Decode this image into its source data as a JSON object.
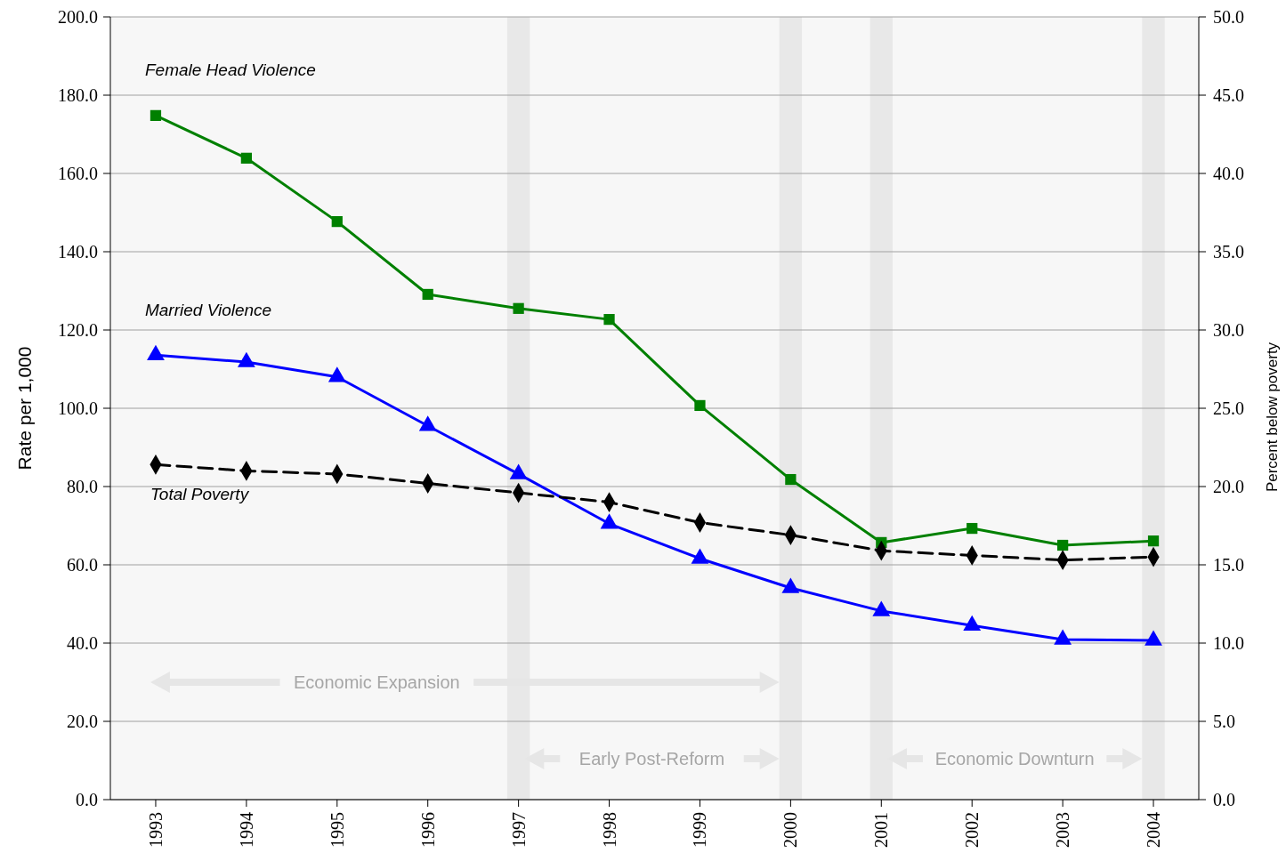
{
  "chart_data": {
    "type": "line",
    "ylabel": "Rate per 1,000",
    "y2label": "Percent below poverty",
    "x": [
      1993,
      1994,
      1995,
      1996,
      1997,
      1998,
      1999,
      2000,
      2001,
      2002,
      2003,
      2004
    ],
    "xlim": [
      1992.5,
      2004.5
    ],
    "xticks": [
      1993,
      1994,
      1995,
      1996,
      1997,
      1998,
      1999,
      2000,
      2001,
      2002,
      2003,
      2004
    ],
    "ylim": [
      0,
      200
    ],
    "yticks": [
      {
        "value": 0,
        "label": "0.0"
      },
      {
        "value": 20,
        "label": "20.0"
      },
      {
        "value": 40,
        "label": "40.0"
      },
      {
        "value": 60,
        "label": "60.0"
      },
      {
        "value": 80,
        "label": "80.0"
      },
      {
        "value": 100,
        "label": "100.0"
      },
      {
        "value": 120,
        "label": "120.0"
      },
      {
        "value": 140,
        "label": "140.0"
      },
      {
        "value": 160,
        "label": "160.0"
      },
      {
        "value": 180,
        "label": "180.0"
      },
      {
        "value": 200,
        "label": "200.0"
      }
    ],
    "y2lim": [
      0,
      50
    ],
    "y2ticks": [
      {
        "value": 0,
        "label": "0.0"
      },
      {
        "value": 5,
        "label": "5.0"
      },
      {
        "value": 10,
        "label": "10.0"
      },
      {
        "value": 15,
        "label": "15.0"
      },
      {
        "value": 20,
        "label": "20.0"
      },
      {
        "value": 25,
        "label": "25.0"
      },
      {
        "value": 30,
        "label": "30.0"
      },
      {
        "value": 35,
        "label": "35.0"
      },
      {
        "value": 40,
        "label": "40.0"
      },
      {
        "value": 45,
        "label": "45.0"
      },
      {
        "value": 50,
        "label": "50.0"
      }
    ],
    "grid": "y",
    "series": [
      {
        "name": "Female Head Violence",
        "color": "#008000",
        "marker": "square",
        "line_style": "solid",
        "values": [
          174.8,
          163.9,
          147.7,
          129.1,
          125.5,
          122.7,
          100.7,
          81.8,
          65.7,
          69.3,
          65.0,
          66.1
        ]
      },
      {
        "name": "Married Violence",
        "color": "#0000ff",
        "marker": "triangle",
        "line_style": "solid",
        "values": [
          113.6,
          111.8,
          108.0,
          95.5,
          83.2,
          70.5,
          61.6,
          54.1,
          48.2,
          44.5,
          40.9,
          40.7
        ]
      },
      {
        "name": "Total Poverty",
        "color": "#000000",
        "marker": "diamond",
        "line_style": "dashed",
        "axis": "y2",
        "values": [
          21.4,
          21.0,
          20.8,
          20.2,
          19.6,
          19.0,
          17.7,
          16.9,
          15.9,
          15.6,
          15.3,
          15.5
        ]
      }
    ],
    "bands": [
      {
        "axis": "x",
        "from": 1996.875,
        "to": 1997.125,
        "color": "#e8e8e8"
      },
      {
        "axis": "x",
        "from": 1999.875,
        "to": 2000.125,
        "color": "#e8e8e8"
      },
      {
        "axis": "x",
        "from": 2000.875,
        "to": 2001.125,
        "color": "#e8e8e8"
      },
      {
        "axis": "x",
        "from": 2003.875,
        "to": 2004.125,
        "color": "#e8e8e8"
      }
    ],
    "annotations": [
      "Economic Expansion",
      "Early Post-Reform",
      "Economic Downturn"
    ]
  }
}
